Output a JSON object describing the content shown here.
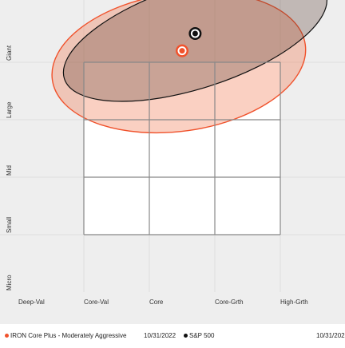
{
  "chart_data": {
    "type": "scatter",
    "subtype": "style-box",
    "x_categories": [
      "Deep-Val",
      "Core-Val",
      "Core",
      "Core-Grth",
      "High-Grth"
    ],
    "y_categories": [
      "Micro",
      "Small",
      "Mid",
      "Large",
      "Giant"
    ],
    "grid": true,
    "legend_position": "bottom",
    "series": [
      {
        "name": "IRON Core Plus - Moderately Aggressive",
        "date": "10/31/2022",
        "color": "#f0522c",
        "centroid": [
          2.5,
          4.2
        ],
        "ellipse": {
          "center": [
            2.45,
            4.0
          ],
          "rx": 1.95,
          "ry": 1.2,
          "rotation_deg": -8
        }
      },
      {
        "name": "S&P 500",
        "date": "10/31/202",
        "color": "#111111",
        "centroid": [
          2.7,
          4.5
        ],
        "ellipse": {
          "center": [
            2.7,
            4.45
          ],
          "rx": 2.1,
          "ry": 0.9,
          "rotation_deg": -18
        }
      }
    ]
  },
  "colors": {
    "background": "#eeeeee",
    "grid_light": "#dddddd",
    "style_box": "#888888",
    "box_fill": "#ffffff"
  }
}
